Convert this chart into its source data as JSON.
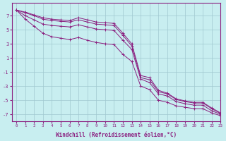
{
  "title": "",
  "xlabel": "Windchill (Refroidissement éolien,°C)",
  "ylabel": "",
  "bg_color": "#c8eef0",
  "grid_color": "#a0c8d0",
  "line_color": "#8b2080",
  "xlim": [
    -0.5,
    23
  ],
  "ylim": [
    -8,
    8.8
  ],
  "yticks": [
    -7,
    -5,
    -3,
    -1,
    1,
    3,
    5,
    7
  ],
  "xticks": [
    0,
    1,
    2,
    3,
    4,
    5,
    6,
    7,
    8,
    9,
    10,
    11,
    12,
    13,
    14,
    15,
    16,
    17,
    18,
    19,
    20,
    21,
    22,
    23
  ],
  "lines": [
    [
      7.8,
      7.5,
      7.1,
      6.7,
      6.5,
      6.4,
      6.3,
      6.7,
      6.4,
      6.1,
      6.0,
      5.9,
      4.5,
      3.0,
      -1.5,
      -1.8,
      -3.6,
      -4.0,
      -4.8,
      -5.1,
      -5.3,
      -5.3,
      -6.1,
      -6.8
    ],
    [
      7.8,
      7.4,
      7.0,
      6.5,
      6.3,
      6.2,
      6.1,
      6.4,
      6.1,
      5.8,
      5.7,
      5.6,
      4.2,
      2.7,
      -1.8,
      -2.1,
      -3.8,
      -4.1,
      -4.9,
      -5.2,
      -5.4,
      -5.4,
      -6.2,
      -6.9
    ],
    [
      7.8,
      7.0,
      6.4,
      5.8,
      5.6,
      5.5,
      5.4,
      5.7,
      5.4,
      5.1,
      5.0,
      4.9,
      3.5,
      2.2,
      -2.0,
      -2.5,
      -4.1,
      -4.4,
      -5.2,
      -5.5,
      -5.7,
      -5.7,
      -6.5,
      -7.0
    ],
    [
      7.8,
      6.5,
      5.5,
      4.5,
      4.0,
      3.8,
      3.6,
      3.9,
      3.5,
      3.2,
      3.0,
      2.9,
      1.5,
      0.5,
      -3.0,
      -3.5,
      -5.0,
      -5.3,
      -5.8,
      -6.0,
      -6.2,
      -6.2,
      -6.8,
      -7.2
    ]
  ]
}
